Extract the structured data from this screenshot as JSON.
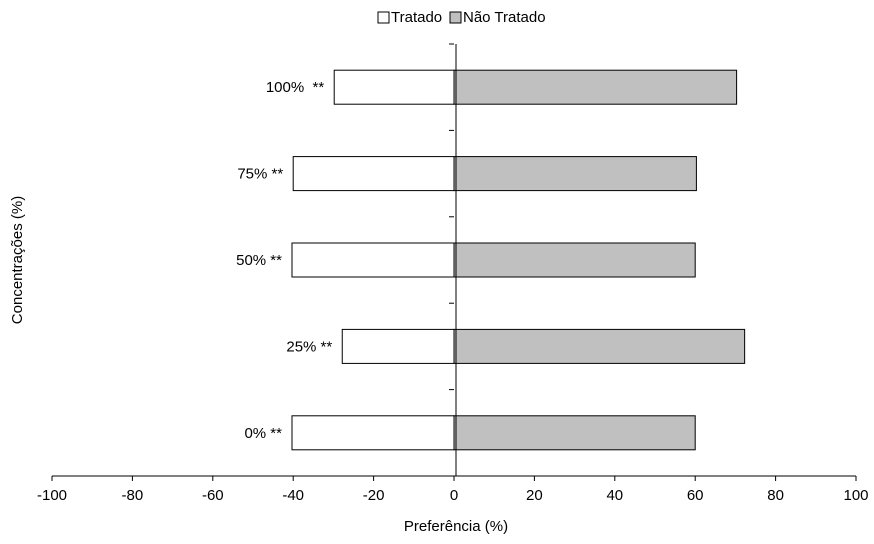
{
  "chart_data": {
    "type": "bar",
    "orientation": "horizontal",
    "title": "",
    "xlabel": "Preferência (%)",
    "ylabel": "Concentrações (%)",
    "xlim": [
      -100,
      100
    ],
    "xticks": [
      "-100",
      "-80",
      "-60",
      "-40",
      "-20",
      "0",
      "20",
      "40",
      "60",
      "80",
      "100"
    ],
    "xtick_values": [
      -100,
      -80,
      -60,
      -40,
      -20,
      0,
      20,
      40,
      60,
      80,
      100
    ],
    "categories": [
      "0% **",
      "25% **",
      "50% **",
      "75% **",
      "100%  **"
    ],
    "series": [
      {
        "name": "Tratado",
        "values": [
          -40.3,
          -27.8,
          -40.3,
          -40,
          -29.8
        ],
        "color": "#ffffff"
      },
      {
        "name": "Não Tratado",
        "values": [
          60,
          72.3,
          60,
          60.3,
          70.3
        ],
        "color": "#c0c0c0"
      }
    ],
    "legend_position": "top-center",
    "grid": false
  }
}
